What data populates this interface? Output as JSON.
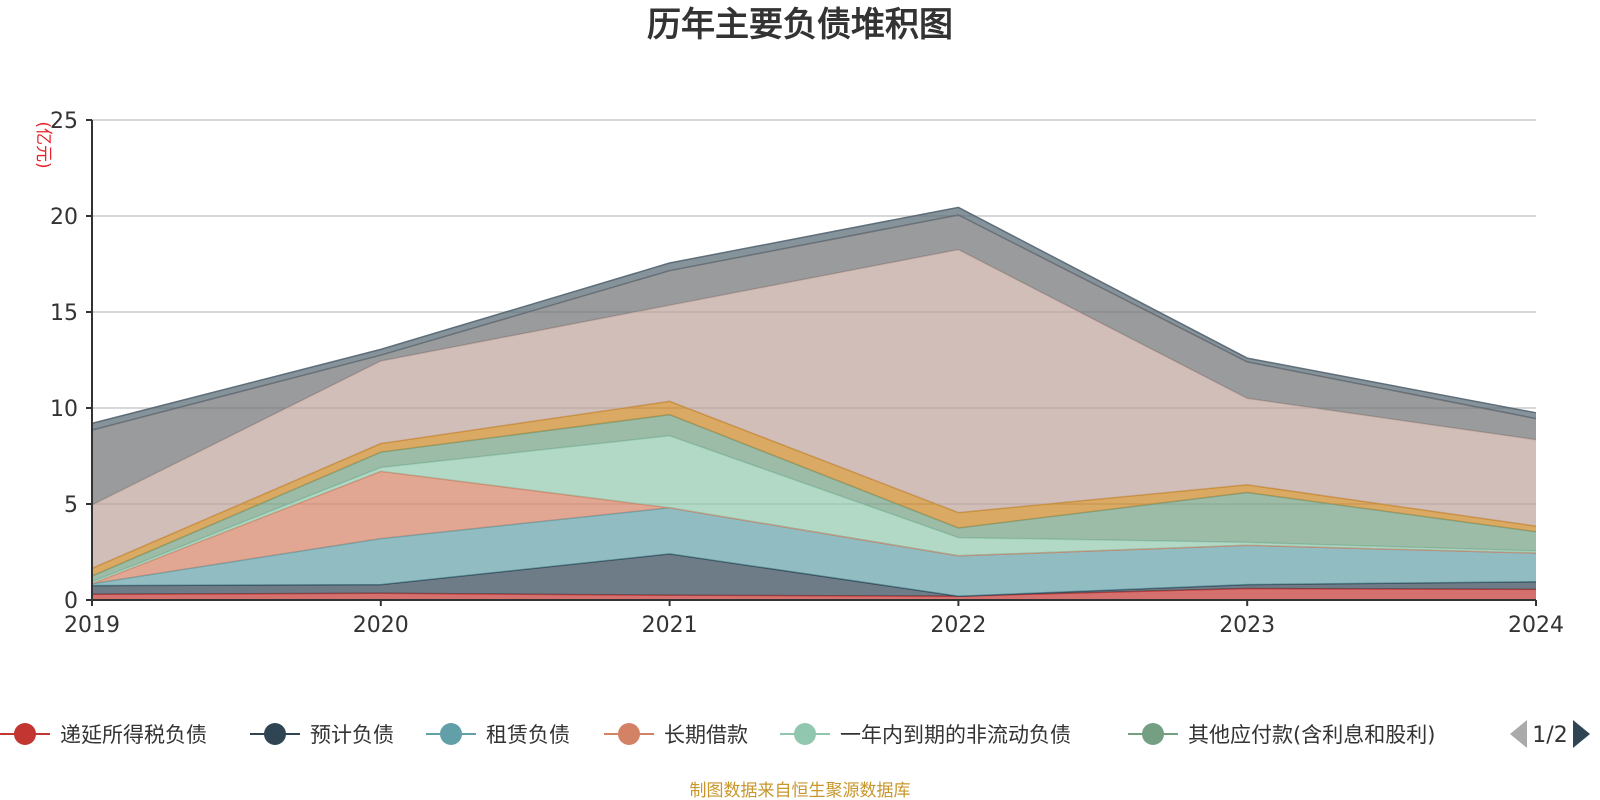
{
  "chart_data": {
    "type": "area",
    "title": "历年主要负债堆积图",
    "ylabel": "(亿元)",
    "xlabel": "",
    "x": [
      "2019",
      "2020",
      "2021",
      "2022",
      "2023",
      "2024"
    ],
    "ylim": [
      0,
      25
    ],
    "yticks": [
      0,
      5,
      10,
      15,
      20,
      25
    ],
    "grid": true,
    "stacked": true,
    "series": [
      {
        "name": "递延所得税负债",
        "color": "#c23531",
        "values": [
          0.3,
          0.35,
          0.25,
          0.2,
          0.6,
          0.55
        ],
        "legend": true
      },
      {
        "name": "预计负债",
        "color": "#2f4554",
        "values": [
          0.45,
          0.45,
          2.15,
          0.0,
          0.2,
          0.4
        ],
        "legend": true
      },
      {
        "name": "租赁负债",
        "color": "#61a0a8",
        "values": [
          0.1,
          2.4,
          2.4,
          2.1,
          2.05,
          1.5
        ],
        "legend": true
      },
      {
        "name": "长期借款",
        "color": "#d48265",
        "values": [
          0.0,
          3.5,
          0.0,
          0.0,
          0.0,
          0.0
        ],
        "legend": true
      },
      {
        "name": "一年内到期的非流动负债",
        "color": "#91c7ae",
        "values": [
          0.1,
          0.2,
          3.75,
          0.95,
          0.15,
          0.1
        ],
        "legend": true
      },
      {
        "name": "其他应付款(含利息和股利)",
        "color": "#749f83",
        "values": [
          0.3,
          0.8,
          1.1,
          0.5,
          2.6,
          1.0
        ],
        "legend": true
      },
      {
        "name": "",
        "color": "#ca8622",
        "values": [
          0.4,
          0.45,
          0.7,
          0.8,
          0.4,
          0.3
        ],
        "legend": false
      },
      {
        "name": "",
        "color": "#bda29a",
        "values": [
          3.3,
          4.3,
          5.0,
          13.7,
          4.5,
          4.5
        ],
        "legend": false
      },
      {
        "name": "",
        "color": "#6e7074",
        "values": [
          3.9,
          0.3,
          1.8,
          1.8,
          1.9,
          1.1
        ],
        "legend": false
      },
      {
        "name": "",
        "color": "#546570",
        "values": [
          0.35,
          0.3,
          0.4,
          0.4,
          0.2,
          0.3
        ],
        "legend": false
      }
    ]
  },
  "legend": {
    "page": "1/2"
  },
  "footer": "制图数据来自恒生聚源数据库"
}
